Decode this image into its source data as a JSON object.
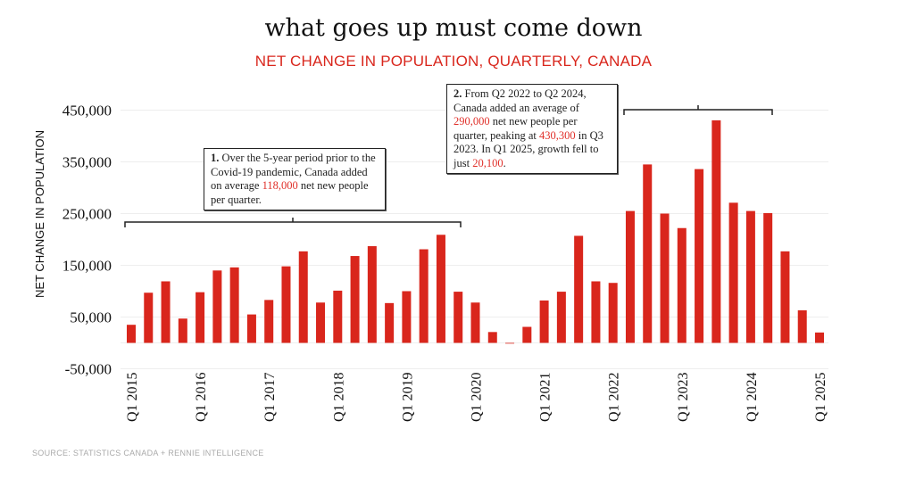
{
  "title": "what goes up must come down",
  "subtitle": "NET CHANGE IN POPULATION, QUARTERLY, CANADA",
  "source": "SOURCE: STATISTICS CANADA + RENNIE INTELLIGENCE",
  "annotations": [
    {
      "num": "1.",
      "pre": " Over the 5-year period prior to the Covid-19 pandemic, Canada added on average ",
      "hl1": "118,000",
      "post": " net new people per quarter."
    },
    {
      "num": "2.",
      "pre": " From Q2 2022 to Q2 2024, Canada added an average of ",
      "hl1": "290,000",
      "mid": " net new people per quarter, peaking at ",
      "hl2": "430,300",
      "mid2": " in Q3 2023. In Q1 2025, growth fell to just ",
      "hl3": "20,100",
      "post": "."
    }
  ],
  "chart_data": {
    "type": "bar",
    "title": "what goes up must come down",
    "subtitle": "NET CHANGE IN POPULATION, QUARTERLY, CANADA",
    "xlabel": "",
    "ylabel": "NET CHANGE IN POPULATION",
    "ylim": [
      -50000,
      450000
    ],
    "yticks": [
      -50000,
      50000,
      150000,
      250000,
      350000,
      450000
    ],
    "ytick_labels": [
      "-50,000",
      "50,000",
      "150,000",
      "250,000",
      "350,000",
      "450,000"
    ],
    "xtick_labels": [
      "Q1 2015",
      "Q1 2016",
      "Q1 2017",
      "Q1 2018",
      "Q1 2019",
      "Q1 2020",
      "Q1 2021",
      "Q1 2022",
      "Q1 2023",
      "Q1 2024",
      "Q1 2025"
    ],
    "grid": true,
    "color": "#d9261c",
    "categories": [
      "Q1 2015",
      "Q2 2015",
      "Q3 2015",
      "Q4 2015",
      "Q1 2016",
      "Q2 2016",
      "Q3 2016",
      "Q4 2016",
      "Q1 2017",
      "Q2 2017",
      "Q3 2017",
      "Q4 2017",
      "Q1 2018",
      "Q2 2018",
      "Q3 2018",
      "Q4 2018",
      "Q1 2019",
      "Q2 2019",
      "Q3 2019",
      "Q4 2019",
      "Q1 2020",
      "Q2 2020",
      "Q3 2020",
      "Q4 2020",
      "Q1 2021",
      "Q2 2021",
      "Q3 2021",
      "Q4 2021",
      "Q1 2022",
      "Q2 2022",
      "Q3 2022",
      "Q4 2022",
      "Q1 2023",
      "Q2 2023",
      "Q3 2023",
      "Q4 2023",
      "Q1 2024",
      "Q2 2024",
      "Q3 2024",
      "Q4 2024",
      "Q1 2025"
    ],
    "values": [
      35000,
      97000,
      119000,
      47000,
      98000,
      140000,
      146000,
      55000,
      83000,
      148000,
      177000,
      78000,
      101000,
      168000,
      187000,
      77000,
      100000,
      181000,
      209000,
      99000,
      78000,
      21000,
      -1000,
      31000,
      82000,
      99000,
      207000,
      119000,
      116000,
      255000,
      345000,
      250000,
      222000,
      336000,
      430300,
      271000,
      255000,
      251000,
      177000,
      63000,
      20100
    ]
  }
}
